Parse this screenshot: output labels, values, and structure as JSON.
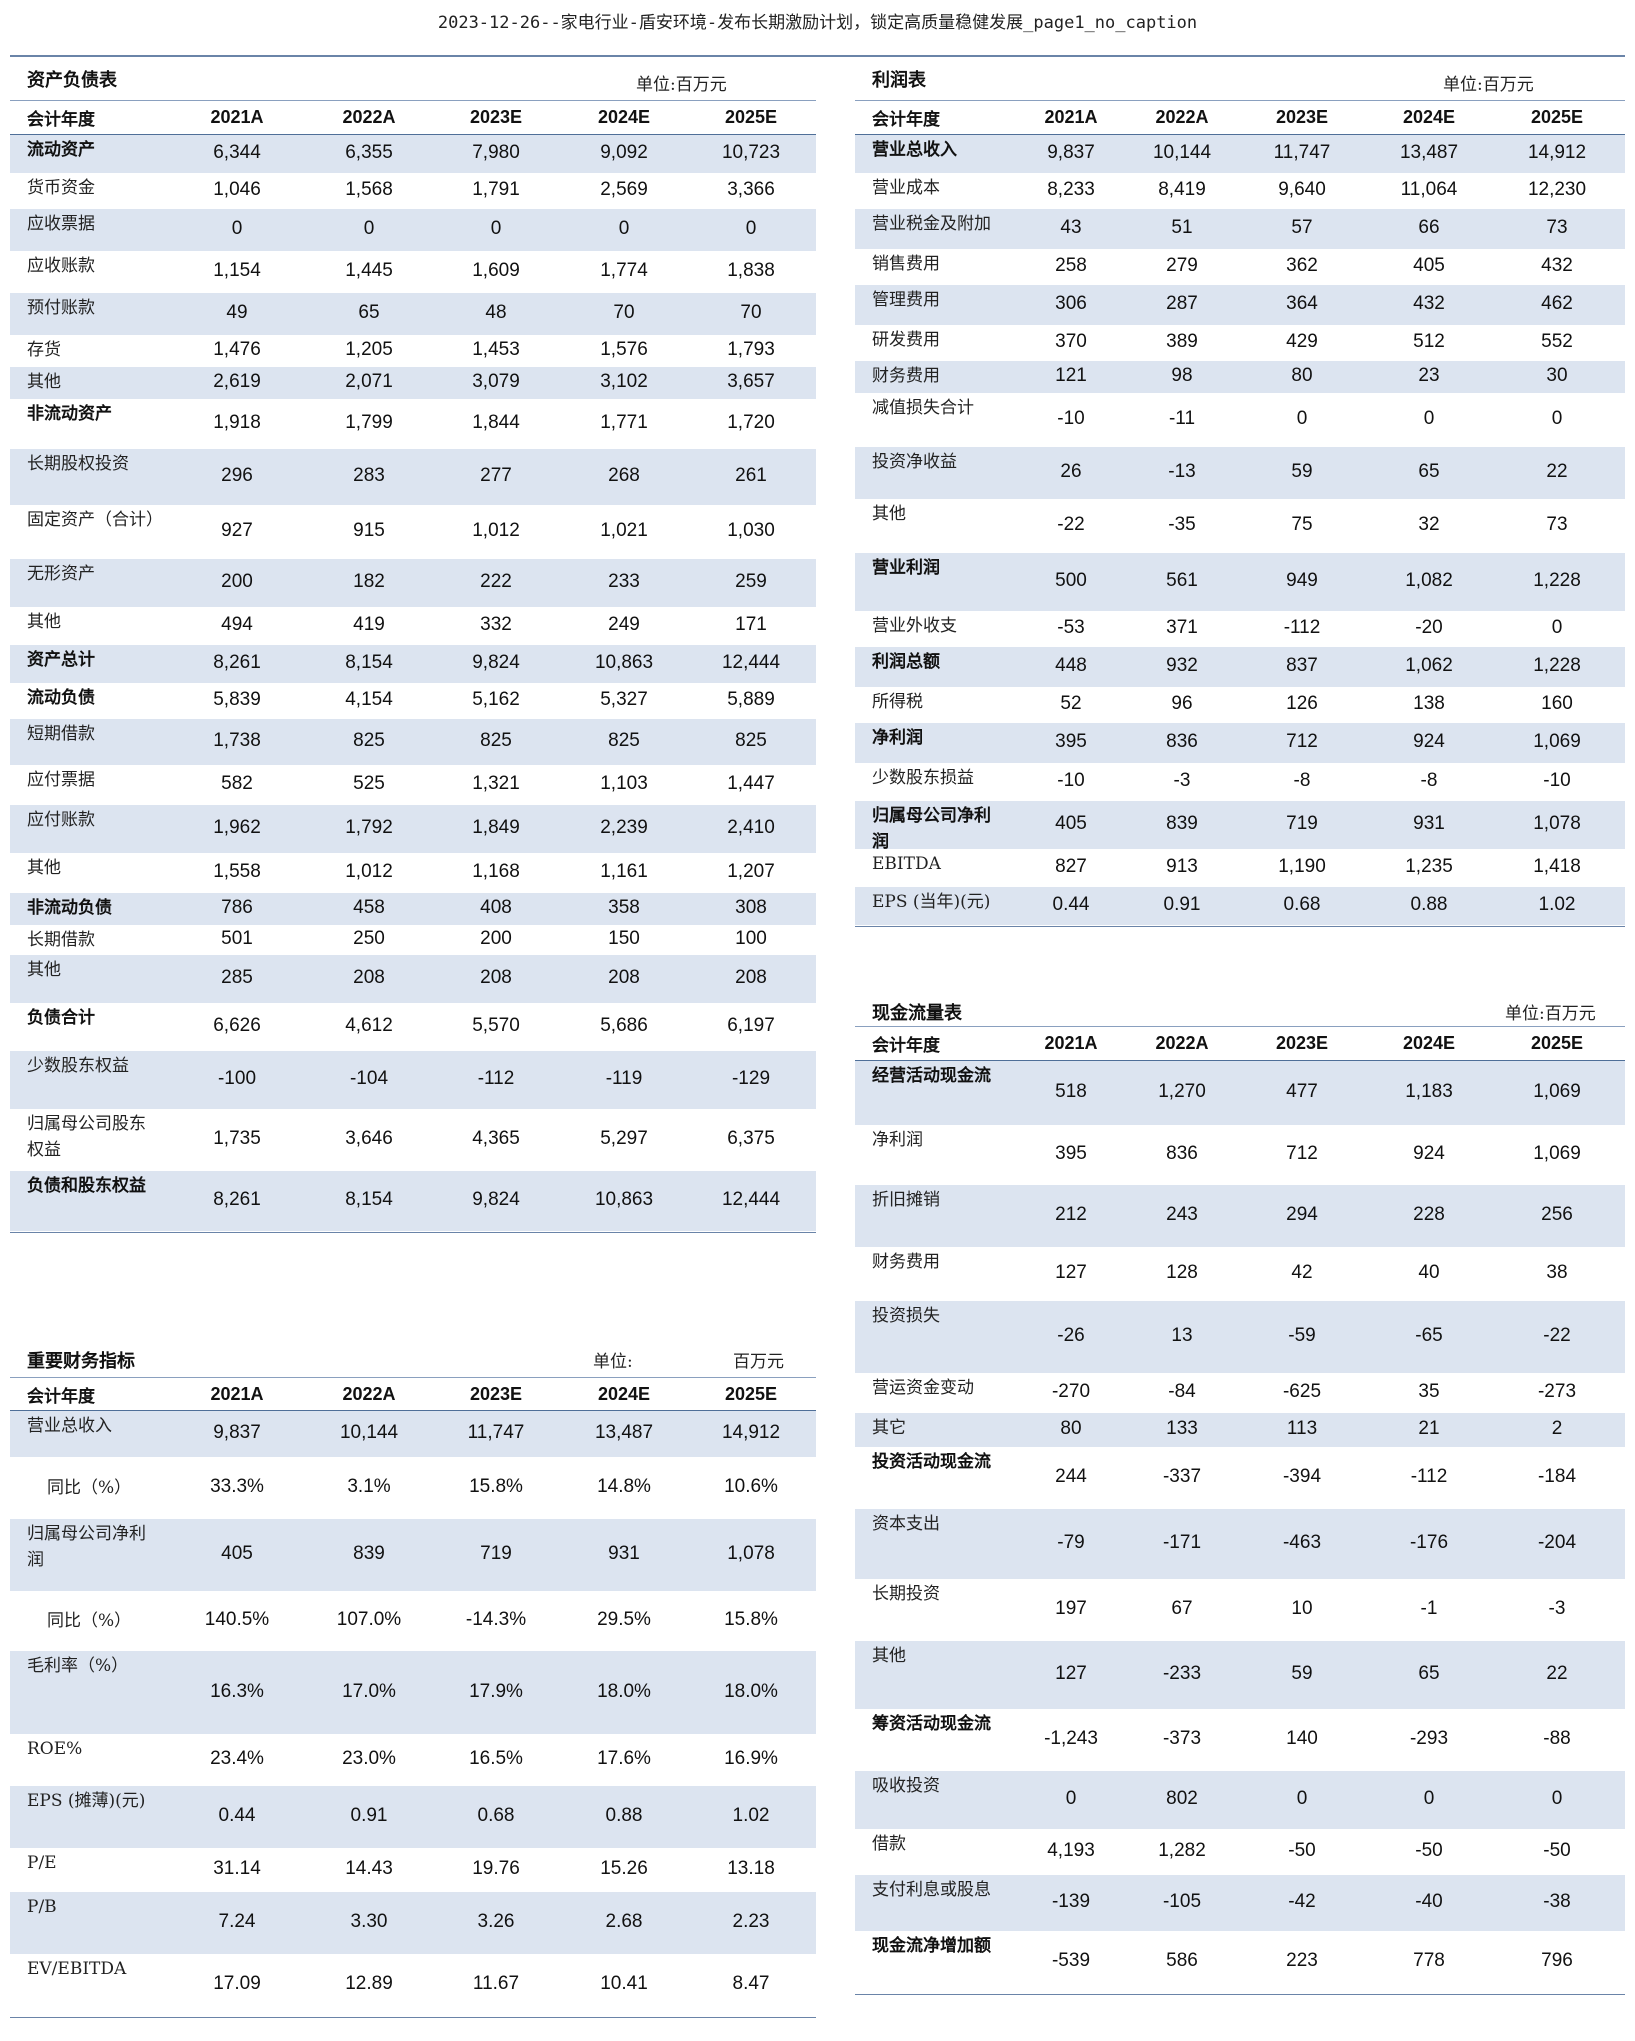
{
  "header": {
    "title": "2023-12-26--家电行业-盾安环境-发布长期激励计划，锁定高质量稳健发展_page1_no_caption"
  },
  "balance_sheet": {
    "title": "资产负债表",
    "unit": "单位:百万元",
    "header_label": "会计年度",
    "years": [
      "2021A",
      "2022A",
      "2023E",
      "2024E",
      "2025E"
    ],
    "rows": [
      {
        "label": "流动资产",
        "bold": true,
        "values": [
          "6,344",
          "6,355",
          "7,980",
          "9,092",
          "10,723"
        ]
      },
      {
        "label": "货币资金",
        "values": [
          "1,046",
          "1,568",
          "1,791",
          "2,569",
          "3,366"
        ]
      },
      {
        "label": "应收票据",
        "values": [
          "0",
          "0",
          "0",
          "0",
          "0"
        ]
      },
      {
        "label": "应收账款",
        "values": [
          "1,154",
          "1,445",
          "1,609",
          "1,774",
          "1,838"
        ]
      },
      {
        "label": "预付账款",
        "values": [
          "49",
          "65",
          "48",
          "70",
          "70"
        ]
      },
      {
        "label": "存货",
        "values": [
          "1,476",
          "1,205",
          "1,453",
          "1,576",
          "1,793"
        ]
      },
      {
        "label": "其他",
        "values": [
          "2,619",
          "2,071",
          "3,079",
          "3,102",
          "3,657"
        ]
      },
      {
        "label": "非流动资产",
        "bold": true,
        "values": [
          "1,918",
          "1,799",
          "1,844",
          "1,771",
          "1,720"
        ]
      },
      {
        "label": "长期股权投资",
        "values": [
          "296",
          "283",
          "277",
          "268",
          "261"
        ]
      },
      {
        "label": "固定资产（合计）",
        "values": [
          "927",
          "915",
          "1,012",
          "1,021",
          "1,030"
        ]
      },
      {
        "label": "无形资产",
        "values": [
          "200",
          "182",
          "222",
          "233",
          "259"
        ]
      },
      {
        "label": "其他",
        "values": [
          "494",
          "419",
          "332",
          "249",
          "171"
        ]
      },
      {
        "label": "资产总计",
        "bold": true,
        "values": [
          "8,261",
          "8,154",
          "9,824",
          "10,863",
          "12,444"
        ]
      },
      {
        "label": "流动负债",
        "bold": true,
        "values": [
          "5,839",
          "4,154",
          "5,162",
          "5,327",
          "5,889"
        ]
      },
      {
        "label": "短期借款",
        "values": [
          "1,738",
          "825",
          "825",
          "825",
          "825"
        ]
      },
      {
        "label": "应付票据",
        "values": [
          "582",
          "525",
          "1,321",
          "1,103",
          "1,447"
        ]
      },
      {
        "label": "应付账款",
        "values": [
          "1,962",
          "1,792",
          "1,849",
          "2,239",
          "2,410"
        ]
      },
      {
        "label": "其他",
        "values": [
          "1,558",
          "1,012",
          "1,168",
          "1,161",
          "1,207"
        ]
      },
      {
        "label": "非流动负债",
        "bold": true,
        "values": [
          "786",
          "458",
          "408",
          "358",
          "308"
        ]
      },
      {
        "label": "长期借款",
        "values": [
          "501",
          "250",
          "200",
          "150",
          "100"
        ]
      },
      {
        "label": "其他",
        "values": [
          "285",
          "208",
          "208",
          "208",
          "208"
        ]
      },
      {
        "label": "负债合计",
        "bold": true,
        "values": [
          "6,626",
          "4,612",
          "5,570",
          "5,686",
          "6,197"
        ]
      },
      {
        "label": "少数股东权益",
        "values": [
          "-100",
          "-104",
          "-112",
          "-119",
          "-129"
        ]
      },
      {
        "label": "归属母公司股东权益",
        "values": [
          "1,735",
          "3,646",
          "4,365",
          "5,297",
          "6,375"
        ]
      },
      {
        "label": "负债和股东权益",
        "bold": true,
        "values": [
          "8,261",
          "8,154",
          "9,824",
          "10,863",
          "12,444"
        ]
      }
    ]
  },
  "key_indicators": {
    "title": "重要财务指标",
    "unit_label": "单位:",
    "unit": "百万元",
    "header_label": "会计年度",
    "years": [
      "2021A",
      "2022A",
      "2023E",
      "2024E",
      "2025E"
    ],
    "rows": [
      {
        "label": "营业总收入",
        "values": [
          "9,837",
          "10,144",
          "11,747",
          "13,487",
          "14,912"
        ]
      },
      {
        "label": "同比（%）",
        "indent": true,
        "values": [
          "33.3%",
          "3.1%",
          "15.8%",
          "14.8%",
          "10.6%"
        ]
      },
      {
        "label": "归属母公司净利润",
        "values": [
          "405",
          "839",
          "719",
          "931",
          "1,078"
        ]
      },
      {
        "label": "同比（%）",
        "indent": true,
        "values": [
          "140.5%",
          "107.0%",
          "-14.3%",
          "29.5%",
          "15.8%"
        ]
      },
      {
        "label": "毛利率（%）",
        "values": [
          "16.3%",
          "17.0%",
          "17.9%",
          "18.0%",
          "18.0%"
        ]
      },
      {
        "label": "ROE%",
        "values": [
          "23.4%",
          "23.0%",
          "16.5%",
          "17.6%",
          "16.9%"
        ]
      },
      {
        "label": "EPS (摊薄)(元)",
        "values": [
          "0.44",
          "0.91",
          "0.68",
          "0.88",
          "1.02"
        ]
      },
      {
        "label": "P/E",
        "values": [
          "31.14",
          "14.43",
          "19.76",
          "15.26",
          "13.18"
        ]
      },
      {
        "label": "P/B",
        "values": [
          "7.24",
          "3.30",
          "3.26",
          "2.68",
          "2.23"
        ]
      },
      {
        "label": "EV/EBITDA",
        "values": [
          "17.09",
          "12.89",
          "11.67",
          "10.41",
          "8.47"
        ]
      }
    ]
  },
  "income_statement": {
    "title": "利润表",
    "unit": "单位:百万元",
    "header_label": "会计年度",
    "years": [
      "2021A",
      "2022A",
      "2023E",
      "2024E",
      "2025E"
    ],
    "rows": [
      {
        "label": "营业总收入",
        "bold": true,
        "values": [
          "9,837",
          "10,144",
          "11,747",
          "13,487",
          "14,912"
        ]
      },
      {
        "label": "营业成本",
        "values": [
          "8,233",
          "8,419",
          "9,640",
          "11,064",
          "12,230"
        ]
      },
      {
        "label": "营业税金及附加",
        "values": [
          "43",
          "51",
          "57",
          "66",
          "73"
        ]
      },
      {
        "label": "销售费用",
        "values": [
          "258",
          "279",
          "362",
          "405",
          "432"
        ]
      },
      {
        "label": "管理费用",
        "values": [
          "306",
          "287",
          "364",
          "432",
          "462"
        ]
      },
      {
        "label": "研发费用",
        "values": [
          "370",
          "389",
          "429",
          "512",
          "552"
        ]
      },
      {
        "label": "财务费用",
        "values": [
          "121",
          "98",
          "80",
          "23",
          "30"
        ]
      },
      {
        "label": "减值损失合计",
        "values": [
          "-10",
          "-11",
          "0",
          "0",
          "0"
        ]
      },
      {
        "label": "投资净收益",
        "values": [
          "26",
          "-13",
          "59",
          "65",
          "22"
        ]
      },
      {
        "label": "其他",
        "values": [
          "-22",
          "-35",
          "75",
          "32",
          "73"
        ]
      },
      {
        "label": "营业利润",
        "bold": true,
        "values": [
          "500",
          "561",
          "949",
          "1,082",
          "1,228"
        ]
      },
      {
        "label": "营业外收支",
        "values": [
          "-53",
          "371",
          "-112",
          "-20",
          "0"
        ]
      },
      {
        "label": "利润总额",
        "bold": true,
        "values": [
          "448",
          "932",
          "837",
          "1,062",
          "1,228"
        ]
      },
      {
        "label": "所得税",
        "values": [
          "52",
          "96",
          "126",
          "138",
          "160"
        ]
      },
      {
        "label": "净利润",
        "bold": true,
        "values": [
          "395",
          "836",
          "712",
          "924",
          "1,069"
        ]
      },
      {
        "label": "少数股东损益",
        "values": [
          "-10",
          "-3",
          "-8",
          "-8",
          "-10"
        ]
      },
      {
        "label": "归属母公司净利润",
        "bold": true,
        "values": [
          "405",
          "839",
          "719",
          "931",
          "1,078"
        ]
      },
      {
        "label": "EBITDA",
        "values": [
          "827",
          "913",
          "1,190",
          "1,235",
          "1,418"
        ]
      },
      {
        "label": "EPS (当年)(元)",
        "values": [
          "0.44",
          "0.91",
          "0.68",
          "0.88",
          "1.02"
        ]
      }
    ]
  },
  "cash_flow": {
    "title": "现金流量表",
    "unit": "单位:百万元",
    "header_label": "会计年度",
    "years": [
      "2021A",
      "2022A",
      "2023E",
      "2024E",
      "2025E"
    ],
    "rows": [
      {
        "label": "经营活动现金流",
        "bold": true,
        "values": [
          "518",
          "1,270",
          "477",
          "1,183",
          "1,069"
        ]
      },
      {
        "label": "净利润",
        "values": [
          "395",
          "836",
          "712",
          "924",
          "1,069"
        ]
      },
      {
        "label": "折旧摊销",
        "values": [
          "212",
          "243",
          "294",
          "228",
          "256"
        ]
      },
      {
        "label": "财务费用",
        "values": [
          "127",
          "128",
          "42",
          "40",
          "38"
        ]
      },
      {
        "label": "投资损失",
        "values": [
          "-26",
          "13",
          "-59",
          "-65",
          "-22"
        ]
      },
      {
        "label": "营运资金变动",
        "values": [
          "-270",
          "-84",
          "-625",
          "35",
          "-273"
        ]
      },
      {
        "label": "其它",
        "values": [
          "80",
          "133",
          "113",
          "21",
          "2"
        ]
      },
      {
        "label": "投资活动现金流",
        "bold": true,
        "values": [
          "244",
          "-337",
          "-394",
          "-112",
          "-184"
        ]
      },
      {
        "label": "资本支出",
        "values": [
          "-79",
          "-171",
          "-463",
          "-176",
          "-204"
        ]
      },
      {
        "label": "长期投资",
        "values": [
          "197",
          "67",
          "10",
          "-1",
          "-3"
        ]
      },
      {
        "label": "其他",
        "values": [
          "127",
          "-233",
          "59",
          "65",
          "22"
        ]
      },
      {
        "label": "筹资活动现金流",
        "bold": true,
        "values": [
          "-1,243",
          "-373",
          "140",
          "-293",
          "-88"
        ]
      },
      {
        "label": "吸收投资",
        "values": [
          "0",
          "802",
          "0",
          "0",
          "0"
        ]
      },
      {
        "label": "借款",
        "values": [
          "4,193",
          "1,282",
          "-50",
          "-50",
          "-50"
        ]
      },
      {
        "label": "支付利息或股息",
        "values": [
          "-139",
          "-105",
          "-42",
          "-40",
          "-38"
        ]
      },
      {
        "label": "现金流净增加额",
        "bold": true,
        "values": [
          "-539",
          "586",
          "223",
          "778",
          "796"
        ]
      }
    ]
  }
}
